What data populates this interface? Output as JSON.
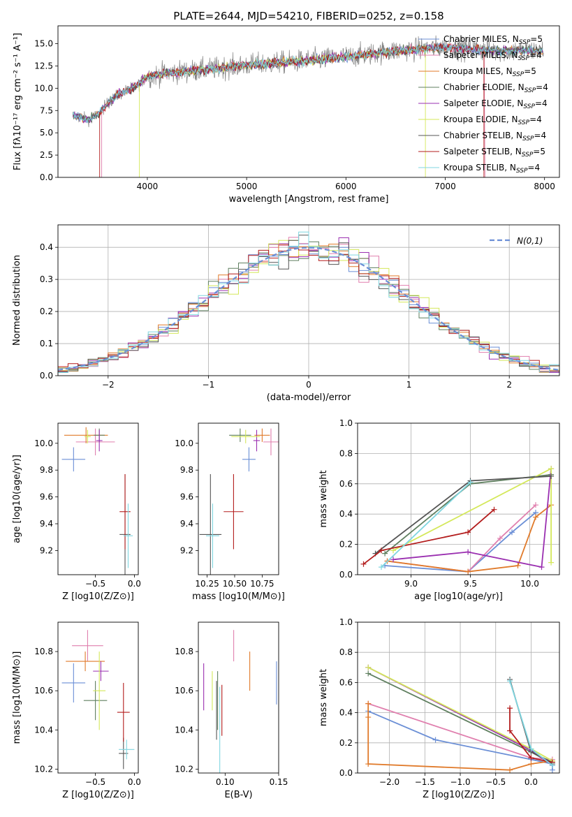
{
  "title": "PLATE=2644, MJD=54210, FIBERID=0252, z=0.158",
  "colors": {
    "chabrier_miles": "#6b8fd6",
    "salpeter_miles": "#e07fae",
    "kroupa_miles": "#e07a2a",
    "chabrier_elodie": "#5f7f5f",
    "salpeter_elodie": "#9a2fb0",
    "kroupa_elodie": "#d4e85a",
    "chabrier_stelib": "#555555",
    "salpeter_stelib": "#b31c1c",
    "kroupa_stelib": "#7fd6e0",
    "observed": "#808080"
  },
  "chart_data": [
    {
      "id": "spectrum",
      "type": "line",
      "title": "PLATE=2644, MJD=54210, FIBERID=0252, z=0.158",
      "xlabel": "wavelength [Angstrom, rest frame]",
      "ylabel": "Flux [fλ10⁻¹⁷ erg cm⁻² s⁻¹ A⁻¹]",
      "xlim": [
        3100,
        8150
      ],
      "ylim": [
        0,
        17
      ],
      "xticks": [
        4000,
        5000,
        6000,
        7000,
        8000
      ],
      "yticks": [
        0.0,
        2.5,
        5.0,
        7.5,
        10.0,
        12.5,
        15.0
      ],
      "legend_position": "top-right",
      "legend": [
        "Chabrier MILES, N_SSP=5",
        "Salpeter MILES, N_SSP=4",
        "Kroupa MILES, N_SSP=5",
        "Chabrier ELODIE, N_SSP=4",
        "Salpeter ELODIE, N_SSP=4",
        "Kroupa ELODIE, N_SSP=4",
        "Chabrier STELIB, N_SSP=4",
        "Salpeter STELIB, N_SSP=5",
        "Kroupa STELIB, N_SSP=4"
      ],
      "continuum": [
        [
          3250,
          7.0
        ],
        [
          3400,
          6.5
        ],
        [
          3500,
          7.0
        ],
        [
          3600,
          8.3
        ],
        [
          3700,
          9.2
        ],
        [
          3800,
          9.8
        ],
        [
          3900,
          10.3
        ],
        [
          4000,
          11.3
        ],
        [
          4200,
          11.7
        ],
        [
          4500,
          12.0
        ],
        [
          5000,
          12.6
        ],
        [
          5500,
          13.0
        ],
        [
          6000,
          13.5
        ],
        [
          6500,
          14.2
        ],
        [
          7000,
          14.6
        ],
        [
          7500,
          14.2
        ],
        [
          8000,
          14.2
        ]
      ]
    },
    {
      "id": "residuals",
      "type": "bar",
      "xlabel": "(data-model)/error",
      "ylabel": "Normed distribution",
      "xlim": [
        -2.5,
        2.5
      ],
      "ylim": [
        0,
        0.47
      ],
      "xticks": [
        -2,
        -1,
        0,
        1,
        2
      ],
      "yticks": [
        0.0,
        0.1,
        0.2,
        0.3,
        0.4
      ],
      "legend": [
        "N(0,1)"
      ],
      "legend_position": "top-right",
      "grid": true
    },
    {
      "id": "age-vs-Z",
      "type": "scatter",
      "xlabel": "Z [log10(Z/Z⊙)]",
      "ylabel": "age  [log10(age/yr)]",
      "xlim": [
        -0.98,
        0.05
      ],
      "ylim": [
        9.02,
        10.15
      ],
      "xticks": [
        -0.5,
        0.0
      ],
      "yticks": [
        9.2,
        9.4,
        9.6,
        9.8,
        10.0
      ],
      "points": [
        {
          "model": "Chabrier MILES",
          "x": -0.78,
          "y": 9.88,
          "ex": 0.15,
          "ey": 0.09
        },
        {
          "model": "Salpeter MILES",
          "x": -0.5,
          "y": 10.01,
          "ex": 0.25,
          "ey": 0.1
        },
        {
          "model": "Kroupa MILES",
          "x": -0.62,
          "y": 10.06,
          "ex": 0.28,
          "ey": 0.06
        },
        {
          "model": "Chabrier ELODIE",
          "x": -0.45,
          "y": 10.06,
          "ex": 0.07,
          "ey": 0.05
        },
        {
          "model": "Salpeter ELODIE",
          "x": -0.45,
          "y": 10.02,
          "ex": 0.04,
          "ey": 0.08
        },
        {
          "model": "Kroupa ELODIE",
          "x": -0.6,
          "y": 10.05,
          "ex": 0.04,
          "ey": 0.05
        },
        {
          "model": "Chabrier STELIB",
          "x": -0.12,
          "y": 9.32,
          "ex": 0.07,
          "ey": 0.45
        },
        {
          "model": "Salpeter STELIB",
          "x": -0.12,
          "y": 9.49,
          "ex": 0.07,
          "ey": 0.28
        },
        {
          "model": "Kroupa STELIB",
          "x": -0.08,
          "y": 9.31,
          "ex": 0.06,
          "ey": 0.24
        }
      ]
    },
    {
      "id": "age-vs-mass",
      "type": "scatter",
      "xlabel": "mass [log10(M/M⊙)]",
      "ylabel": "",
      "xlim": [
        10.17,
        10.9
      ],
      "ylim": [
        9.02,
        10.15
      ],
      "xticks": [
        10.25,
        10.5,
        10.75
      ],
      "yticks": [
        9.2,
        9.4,
        9.6,
        9.8,
        10.0
      ],
      "points": [
        {
          "model": "Chabrier MILES",
          "x": 10.63,
          "y": 9.88,
          "ex": 0.06,
          "ey": 0.09
        },
        {
          "model": "Salpeter MILES",
          "x": 10.83,
          "y": 10.01,
          "ex": 0.07,
          "ey": 0.1
        },
        {
          "model": "Kroupa MILES",
          "x": 10.75,
          "y": 10.06,
          "ex": 0.07,
          "ey": 0.05
        },
        {
          "model": "Chabrier ELODIE",
          "x": 10.55,
          "y": 10.06,
          "ex": 0.1,
          "ey": 0.05
        },
        {
          "model": "Salpeter ELODIE",
          "x": 10.7,
          "y": 10.02,
          "ex": 0.03,
          "ey": 0.08
        },
        {
          "model": "Kroupa ELODIE",
          "x": 10.6,
          "y": 10.05,
          "ex": 0.13,
          "ey": 0.05
        },
        {
          "model": "Chabrier STELIB",
          "x": 10.28,
          "y": 9.32,
          "ex": 0.1,
          "ey": 0.45
        },
        {
          "model": "Salpeter STELIB",
          "x": 10.49,
          "y": 9.49,
          "ex": 0.09,
          "ey": 0.28
        },
        {
          "model": "Kroupa STELIB",
          "x": 10.3,
          "y": 9.31,
          "ex": 0.06,
          "ey": 0.24
        }
      ]
    },
    {
      "id": "weight-vs-age",
      "type": "line",
      "xlabel": "age  [log10(age/yr)]",
      "ylabel": "mass weight",
      "xlim": [
        8.55,
        10.25
      ],
      "ylim": [
        0,
        1.0
      ],
      "xticks": [
        9.0,
        9.5,
        10.0
      ],
      "yticks": [
        0.0,
        0.2,
        0.4,
        0.6,
        0.8,
        1.0
      ],
      "grid": true,
      "series": [
        {
          "model": "Chabrier MILES",
          "x": [
            8.78,
            9.48,
            9.85,
            10.05
          ],
          "y": [
            0.06,
            0.02,
            0.28,
            0.41
          ]
        },
        {
          "model": "Salpeter MILES",
          "x": [
            8.8,
            9.48,
            9.75,
            10.05
          ],
          "y": [
            0.09,
            0.02,
            0.24,
            0.46
          ]
        },
        {
          "model": "Kroupa MILES",
          "x": [
            8.8,
            9.48,
            9.9,
            10.05,
            10.18
          ],
          "y": [
            0.09,
            0.02,
            0.06,
            0.38,
            0.46
          ]
        },
        {
          "model": "Chabrier ELODIE",
          "x": [
            8.78,
            9.5,
            10.18
          ],
          "y": [
            0.14,
            0.6,
            0.66
          ]
        },
        {
          "model": "Salpeter ELODIE",
          "x": [
            8.85,
            9.48,
            10.1,
            10.18
          ],
          "y": [
            0.1,
            0.15,
            0.05,
            0.7
          ]
        },
        {
          "model": "Kroupa ELODIE",
          "x": [
            8.85,
            10.18,
            10.18
          ],
          "y": [
            0.16,
            0.7,
            0.08
          ]
        },
        {
          "model": "Chabrier STELIB",
          "x": [
            8.7,
            9.5,
            10.18
          ],
          "y": [
            0.14,
            0.62,
            0.65
          ]
        },
        {
          "model": "Salpeter STELIB",
          "x": [
            8.6,
            8.75,
            9.48,
            9.7
          ],
          "y": [
            0.07,
            0.16,
            0.28,
            0.43
          ]
        },
        {
          "model": "Kroupa STELIB",
          "x": [
            8.75,
            9.5
          ],
          "y": [
            0.05,
            0.61
          ]
        }
      ]
    },
    {
      "id": "mass-vs-Z",
      "type": "scatter",
      "xlabel": "Z [log10(Z/Z⊙)]",
      "ylabel": "mass [log10(M/M⊙)]",
      "xlim": [
        -0.98,
        0.05
      ],
      "ylim": [
        10.18,
        10.95
      ],
      "xticks": [
        -0.5,
        0.0
      ],
      "yticks": [
        10.2,
        10.4,
        10.6,
        10.8
      ],
      "points": [
        {
          "model": "Chabrier MILES",
          "x": -0.78,
          "y": 10.64,
          "ex": 0.15,
          "ey": 0.1
        },
        {
          "model": "Salpeter MILES",
          "x": -0.6,
          "y": 10.83,
          "ex": 0.2,
          "ey": 0.08
        },
        {
          "model": "Kroupa MILES",
          "x": -0.63,
          "y": 10.75,
          "ex": 0.25,
          "ey": 0.05
        },
        {
          "model": "Chabrier ELODIE",
          "x": -0.5,
          "y": 10.55,
          "ex": 0.15,
          "ey": 0.1
        },
        {
          "model": "Salpeter ELODIE",
          "x": -0.43,
          "y": 10.7,
          "ex": 0.1,
          "ey": 0.05
        },
        {
          "model": "Kroupa ELODIE",
          "x": -0.45,
          "y": 10.6,
          "ex": 0.08,
          "ey": 0.2
        },
        {
          "model": "Chabrier STELIB",
          "x": -0.14,
          "y": 10.28,
          "ex": 0.06,
          "ey": 0.08
        },
        {
          "model": "Salpeter STELIB",
          "x": -0.14,
          "y": 10.49,
          "ex": 0.08,
          "ey": 0.15
        },
        {
          "model": "Kroupa STELIB",
          "x": -0.1,
          "y": 10.3,
          "ex": 0.1,
          "ey": 0.05
        }
      ]
    },
    {
      "id": "mass-vs-EBV",
      "type": "scatter",
      "xlabel": "E(B-V)",
      "ylabel": "",
      "xlim": [
        0.075,
        0.15
      ],
      "ylim": [
        10.18,
        10.95
      ],
      "xticks": [
        0.1,
        0.15
      ],
      "yticks": [
        10.2,
        10.4,
        10.6,
        10.8
      ],
      "points": [
        {
          "model": "Chabrier MILES",
          "x": 0.148,
          "y": 10.64,
          "ey": 0.11
        },
        {
          "model": "Salpeter MILES",
          "x": 0.108,
          "y": 10.83,
          "ey": 0.08
        },
        {
          "model": "Kroupa MILES",
          "x": 0.123,
          "y": 10.7,
          "ey": 0.1
        },
        {
          "model": "Chabrier ELODIE",
          "x": 0.093,
          "y": 10.55,
          "ey": 0.15
        },
        {
          "model": "Salpeter ELODIE",
          "x": 0.08,
          "y": 10.62,
          "ey": 0.12
        },
        {
          "model": "Kroupa ELODIE",
          "x": 0.088,
          "y": 10.6,
          "ey": 0.1
        },
        {
          "model": "Chabrier STELIB",
          "x": 0.092,
          "y": 10.5,
          "ey": 0.15
        },
        {
          "model": "Salpeter STELIB",
          "x": 0.097,
          "y": 10.5,
          "ey": 0.13
        },
        {
          "model": "Kroupa STELIB",
          "x": 0.095,
          "y": 10.4,
          "ey": 0.22
        }
      ]
    },
    {
      "id": "weight-vs-Z",
      "type": "line",
      "xlabel": "Z [log10(Z/Z⊙)]",
      "ylabel": "mass weight",
      "xlim": [
        -2.45,
        0.4
      ],
      "ylim": [
        0,
        1.0
      ],
      "xticks": [
        -2.0,
        -1.5,
        -1.0,
        -0.5,
        0.0
      ],
      "yticks": [
        0.0,
        0.2,
        0.4,
        0.6,
        0.8,
        1.0
      ],
      "grid": true,
      "series": [
        {
          "model": "Chabrier MILES",
          "x": [
            -2.3,
            -1.35,
            0.0,
            0.3,
            0.3
          ],
          "y": [
            0.41,
            0.22,
            0.09,
            0.06,
            0.02
          ]
        },
        {
          "model": "Salpeter MILES",
          "x": [
            -2.3,
            0.0,
            0.3
          ],
          "y": [
            0.46,
            0.1,
            0.09
          ]
        },
        {
          "model": "Kroupa MILES",
          "x": [
            -2.3,
            -2.3,
            -2.3,
            -0.3,
            0.0,
            0.3
          ],
          "y": [
            0.46,
            0.37,
            0.06,
            0.02,
            0.06,
            0.08
          ]
        },
        {
          "model": "Chabrier ELODIE",
          "x": [
            -2.3,
            0.0,
            0.3
          ],
          "y": [
            0.66,
            0.14,
            0.06
          ]
        },
        {
          "model": "Salpeter ELODIE",
          "x": [
            -2.3,
            0.0,
            0.3
          ],
          "y": [
            0.7,
            0.15,
            0.05
          ]
        },
        {
          "model": "Kroupa ELODIE",
          "x": [
            -2.3,
            0.0,
            0.3
          ],
          "y": [
            0.7,
            0.16,
            0.08
          ]
        },
        {
          "model": "Chabrier STELIB",
          "x": [
            -0.3,
            0.0,
            0.3
          ],
          "y": [
            0.62,
            0.14,
            0.07
          ]
        },
        {
          "model": "Salpeter STELIB",
          "x": [
            -0.3,
            -0.3,
            0.0,
            0.3
          ],
          "y": [
            0.43,
            0.28,
            0.1,
            0.07
          ]
        },
        {
          "model": "Kroupa STELIB",
          "x": [
            -0.3,
            0.0,
            0.3
          ],
          "y": [
            0.61,
            0.16,
            0.05
          ]
        }
      ]
    }
  ]
}
